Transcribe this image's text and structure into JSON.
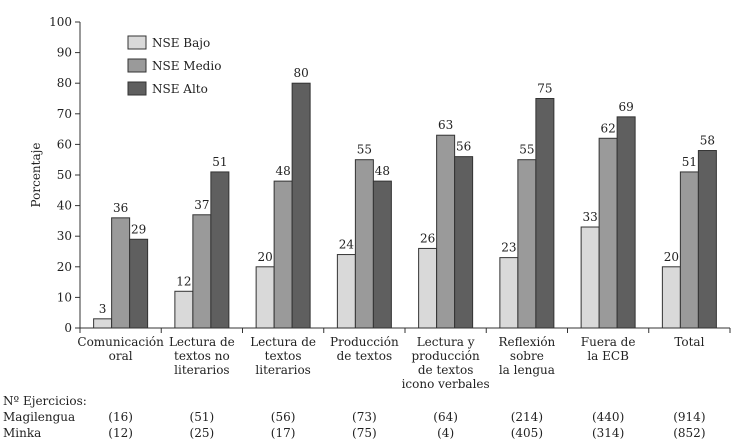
{
  "chart_data": {
    "type": "bar",
    "ylabel": "Porcentaje",
    "ylim": [
      0,
      100
    ],
    "yticks": [
      0,
      10,
      20,
      30,
      40,
      50,
      60,
      70,
      80,
      90,
      100
    ],
    "grid": false,
    "legend_position": "top-left",
    "categories": [
      [
        "Comunicación",
        "oral"
      ],
      [
        "Lectura de",
        "textos no",
        "literarios"
      ],
      [
        "Lectura de",
        "textos",
        "literarios"
      ],
      [
        "Producción",
        "de textos"
      ],
      [
        "Lectura y",
        "producción",
        "de textos",
        "icono verbales"
      ],
      [
        "Reflexión",
        "sobre",
        "la lengua"
      ],
      [
        "Fuera de",
        "la ECB"
      ],
      [
        "Total"
      ]
    ],
    "series": [
      {
        "name": "NSE Bajo",
        "color": "#d9d9d9",
        "values": [
          3,
          12,
          20,
          24,
          26,
          23,
          33,
          20
        ]
      },
      {
        "name": "NSE Medio",
        "color": "#9a9a9a",
        "values": [
          36,
          37,
          48,
          55,
          63,
          55,
          62,
          51
        ]
      },
      {
        "name": "NSE Alto",
        "color": "#5f5f5f",
        "values": [
          29,
          51,
          80,
          48,
          56,
          75,
          69,
          58
        ]
      }
    ]
  },
  "footer": {
    "title": "Nº Ejercicios:",
    "rows": [
      {
        "label": "Magilengua",
        "values": [
          "(16)",
          "(51)",
          "(56)",
          "(73)",
          "(64)",
          "(214)",
          "(440)",
          "(914)"
        ]
      },
      {
        "label": "Minka",
        "values": [
          "(12)",
          "(25)",
          "(17)",
          "(75)",
          "(4)",
          "(405)",
          "(314)",
          "(852)"
        ]
      }
    ]
  }
}
